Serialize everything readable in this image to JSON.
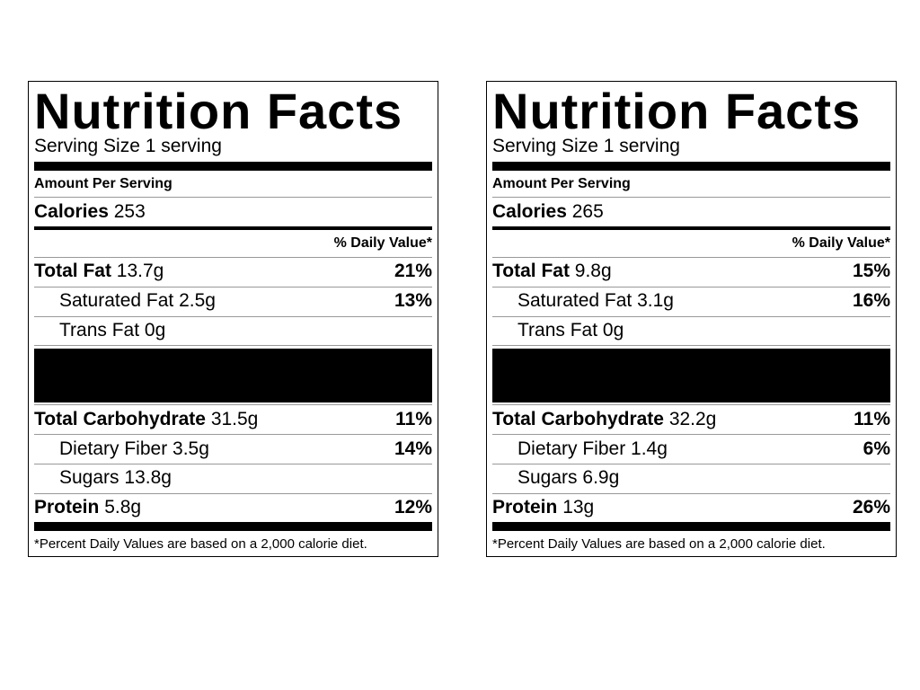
{
  "labels": [
    {
      "title": "Nutrition Facts",
      "serving": "Serving Size 1 serving",
      "amount_per_serving": "Amount Per Serving",
      "calories_label": "Calories",
      "calories_value": "253",
      "dv_header": "% Daily Value*",
      "rows": [
        {
          "name": "Total Fat",
          "amount": "13.7g",
          "dv": "21%"
        },
        {
          "name": "Saturated Fat",
          "amount": "2.5g",
          "dv": "13%"
        },
        {
          "name": "Trans Fat",
          "amount": "0g"
        },
        {
          "name": "Total Carbohydrate",
          "amount": "31.5g",
          "dv": "11%"
        },
        {
          "name": "Dietary Fiber",
          "amount": "3.5g",
          "dv": "14%"
        },
        {
          "name": "Sugars",
          "amount": "13.8g"
        },
        {
          "name": "Protein",
          "amount": "5.8g",
          "dv": "12%"
        }
      ],
      "footnote": "*Percent Daily Values are based on a 2,000 calorie diet."
    },
    {
      "title": "Nutrition Facts",
      "serving": "Serving Size 1 serving",
      "amount_per_serving": "Amount Per Serving",
      "calories_label": "Calories",
      "calories_value": "265",
      "dv_header": "% Daily Value*",
      "rows": [
        {
          "name": "Total Fat",
          "amount": "9.8g",
          "dv": "15%"
        },
        {
          "name": "Saturated Fat",
          "amount": "3.1g",
          "dv": "16%"
        },
        {
          "name": "Trans Fat",
          "amount": "0g"
        },
        {
          "name": "Total Carbohydrate",
          "amount": "32.2g",
          "dv": "11%"
        },
        {
          "name": "Dietary Fiber",
          "amount": "1.4g",
          "dv": "6%"
        },
        {
          "name": "Sugars",
          "amount": "6.9g"
        },
        {
          "name": "Protein",
          "amount": "13g",
          "dv": "26%"
        }
      ],
      "footnote": "*Percent Daily Values are based on a 2,000 calorie diet."
    }
  ]
}
